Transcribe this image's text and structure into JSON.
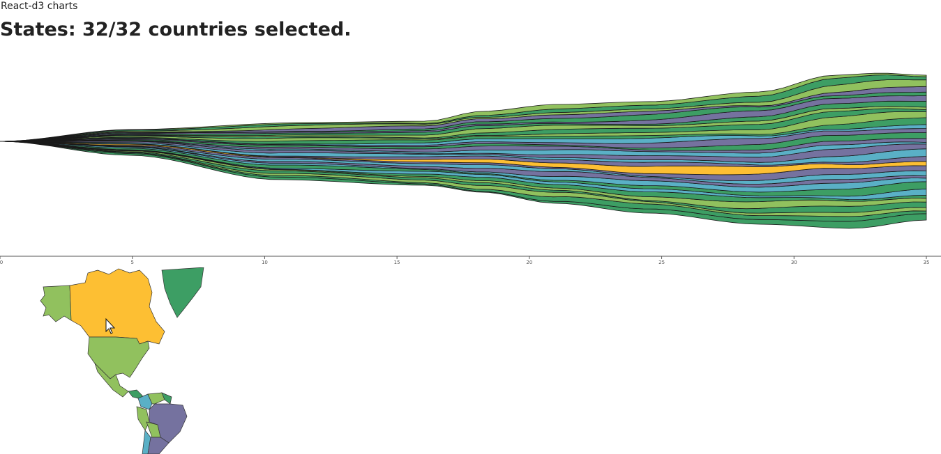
{
  "app": {
    "title": "React-d3 charts"
  },
  "heading": {
    "prefix": "States: ",
    "selected": 32,
    "total": 32,
    "suffix": " countries selected.",
    "text": "States: 32/32 countries selected."
  },
  "palette": {
    "purple": "#75729f",
    "teal": "#5ab0c6",
    "yellow": "#fdbf33",
    "dark_green": "#3d9e64",
    "light_green": "#91c15e"
  },
  "chart_data": {
    "type": "area",
    "subtype": "streamgraph",
    "x_domain": [
      0,
      35
    ],
    "tick_values": [
      0,
      5,
      10,
      15,
      20,
      25,
      30,
      35
    ],
    "tick_labels": [
      "0",
      "5",
      "10",
      "15",
      "20",
      "25",
      "30",
      "35"
    ],
    "layer_count": 32,
    "layer_order_bottom_to_top": [
      "dark_green",
      "dark_green",
      "light_green",
      "dark_green",
      "light_green",
      "dark_green",
      "teal",
      "dark_green",
      "teal",
      "purple",
      "teal",
      "purple",
      "yellow",
      "purple",
      "teal",
      "purple",
      "teal",
      "purple",
      "dark_green",
      "purple",
      "teal",
      "dark_green",
      "light_green",
      "dark_green",
      "light_green",
      "dark_green",
      "purple",
      "dark_green",
      "purple",
      "light_green",
      "dark_green",
      "light_green"
    ]
  },
  "map": {
    "regions": [
      {
        "name": "Alaska",
        "color": "light_green"
      },
      {
        "name": "Canada",
        "color": "yellow"
      },
      {
        "name": "Greenland",
        "color": "dark_green"
      },
      {
        "name": "United States",
        "color": "light_green"
      },
      {
        "name": "Mexico",
        "color": "light_green"
      },
      {
        "name": "Central America",
        "color": "dark_green"
      },
      {
        "name": "Colombia",
        "color": "teal"
      },
      {
        "name": "Venezuela",
        "color": "light_green"
      },
      {
        "name": "Guiana",
        "color": "dark_green"
      },
      {
        "name": "Peru",
        "color": "light_green"
      },
      {
        "name": "Brazil",
        "color": "purple"
      },
      {
        "name": "Bolivia",
        "color": "light_green"
      },
      {
        "name": "Chile",
        "color": "teal"
      },
      {
        "name": "Argentina",
        "color": "purple"
      }
    ]
  }
}
